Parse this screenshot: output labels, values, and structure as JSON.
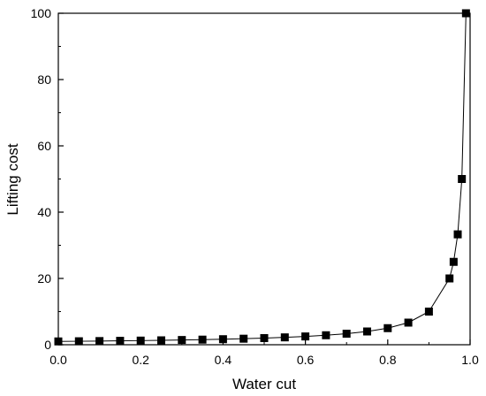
{
  "chart_data": {
    "type": "line",
    "title": "",
    "xlabel": "Water cut",
    "ylabel": "Lifting cost",
    "xlim": [
      0.0,
      1.0
    ],
    "ylim": [
      0,
      100
    ],
    "x_ticks": [
      "0.0",
      "0.2",
      "0.4",
      "0.6",
      "0.8",
      "1.0"
    ],
    "y_ticks": [
      "0",
      "20",
      "40",
      "60",
      "80",
      "100"
    ],
    "x_tick_values": [
      0.0,
      0.2,
      0.4,
      0.6,
      0.8,
      1.0
    ],
    "y_tick_values": [
      0,
      20,
      40,
      60,
      80,
      100
    ],
    "grid": false,
    "legend": "none",
    "marker": "square",
    "line_color": "#000000",
    "marker_color": "#000000",
    "series": [
      {
        "x": [
          0.0,
          0.05,
          0.1,
          0.15,
          0.2,
          0.25,
          0.3,
          0.35,
          0.4,
          0.45,
          0.5,
          0.55,
          0.6,
          0.65,
          0.7,
          0.75,
          0.8,
          0.85,
          0.9,
          0.95,
          0.96,
          0.97,
          0.98,
          0.99
        ],
        "y": [
          1.0,
          1.05,
          1.11,
          1.18,
          1.25,
          1.33,
          1.43,
          1.54,
          1.67,
          1.82,
          2.0,
          2.22,
          2.5,
          2.86,
          3.33,
          4.0,
          5.0,
          6.67,
          10.0,
          20.0,
          25.0,
          33.3,
          50.0,
          100.0
        ]
      }
    ]
  }
}
